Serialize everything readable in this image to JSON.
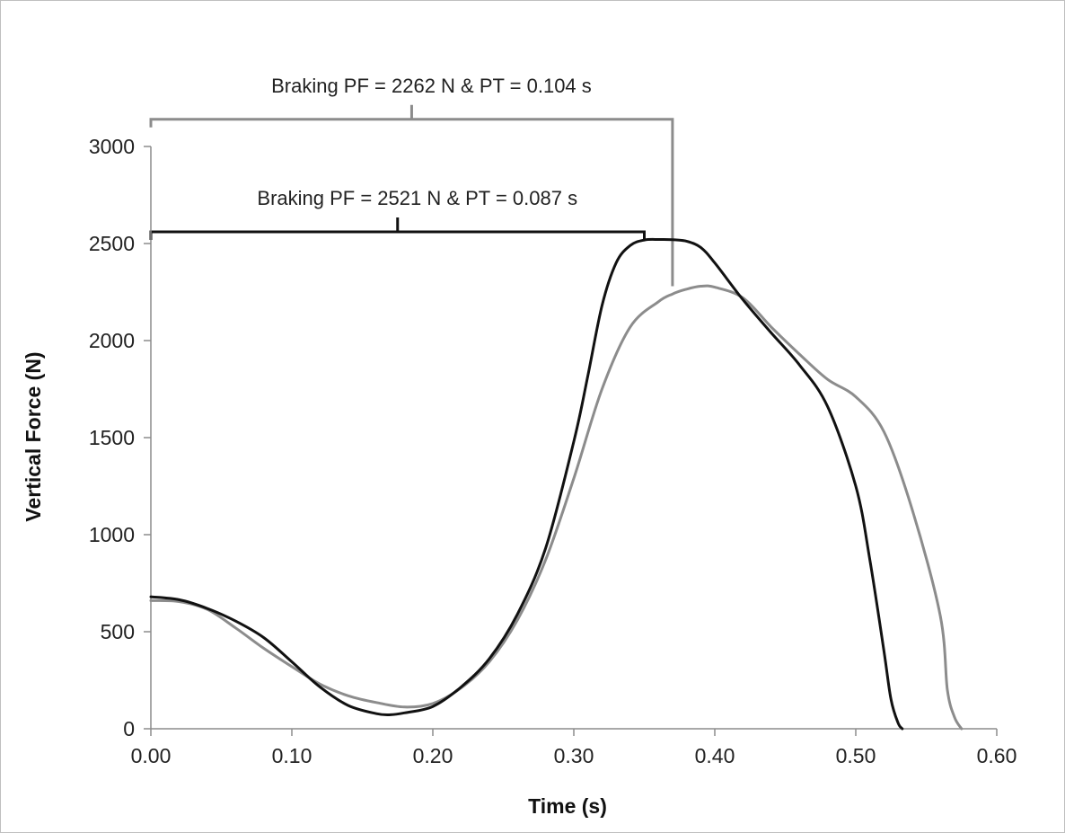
{
  "chart_data": {
    "type": "line",
    "title": "",
    "xlabel": "Time (s)",
    "ylabel": "Vertical Force (N)",
    "xlim": [
      0,
      0.6
    ],
    "ylim": [
      0,
      3000
    ],
    "x_ticks": [
      "0.00",
      "0.10",
      "0.20",
      "0.30",
      "0.40",
      "0.50",
      "0.60"
    ],
    "y_ticks": [
      "0",
      "500",
      "1000",
      "1500",
      "2000",
      "2500",
      "3000"
    ],
    "grid": false,
    "legend": "none",
    "series": [
      {
        "color": "#111111",
        "points": [
          [
            0.0,
            680
          ],
          [
            0.02,
            665
          ],
          [
            0.04,
            620
          ],
          [
            0.06,
            555
          ],
          [
            0.08,
            470
          ],
          [
            0.1,
            345
          ],
          [
            0.12,
            215
          ],
          [
            0.14,
            120
          ],
          [
            0.16,
            78
          ],
          [
            0.17,
            72
          ],
          [
            0.18,
            82
          ],
          [
            0.2,
            115
          ],
          [
            0.22,
            215
          ],
          [
            0.24,
            360
          ],
          [
            0.26,
            590
          ],
          [
            0.28,
            930
          ],
          [
            0.3,
            1480
          ],
          [
            0.31,
            1820
          ],
          [
            0.32,
            2180
          ],
          [
            0.33,
            2400
          ],
          [
            0.34,
            2490
          ],
          [
            0.35,
            2518
          ],
          [
            0.36,
            2521
          ],
          [
            0.37,
            2520
          ],
          [
            0.38,
            2512
          ],
          [
            0.39,
            2480
          ],
          [
            0.4,
            2400
          ],
          [
            0.42,
            2210
          ],
          [
            0.44,
            2040
          ],
          [
            0.46,
            1875
          ],
          [
            0.48,
            1660
          ],
          [
            0.5,
            1250
          ],
          [
            0.51,
            870
          ],
          [
            0.52,
            400
          ],
          [
            0.525,
            150
          ],
          [
            0.53,
            30
          ],
          [
            0.533,
            0
          ]
        ]
      },
      {
        "color": "#8c8c8c",
        "points": [
          [
            0.0,
            660
          ],
          [
            0.02,
            655
          ],
          [
            0.04,
            615
          ],
          [
            0.06,
            520
          ],
          [
            0.08,
            415
          ],
          [
            0.1,
            320
          ],
          [
            0.12,
            230
          ],
          [
            0.14,
            170
          ],
          [
            0.16,
            135
          ],
          [
            0.18,
            112
          ],
          [
            0.2,
            130
          ],
          [
            0.22,
            210
          ],
          [
            0.24,
            345
          ],
          [
            0.26,
            560
          ],
          [
            0.28,
            870
          ],
          [
            0.3,
            1290
          ],
          [
            0.32,
            1750
          ],
          [
            0.34,
            2070
          ],
          [
            0.36,
            2200
          ],
          [
            0.37,
            2240
          ],
          [
            0.38,
            2265
          ],
          [
            0.39,
            2280
          ],
          [
            0.4,
            2275
          ],
          [
            0.42,
            2220
          ],
          [
            0.44,
            2070
          ],
          [
            0.46,
            1930
          ],
          [
            0.48,
            1800
          ],
          [
            0.5,
            1710
          ],
          [
            0.52,
            1530
          ],
          [
            0.54,
            1130
          ],
          [
            0.56,
            580
          ],
          [
            0.565,
            200
          ],
          [
            0.57,
            60
          ],
          [
            0.575,
            0
          ]
        ]
      }
    ],
    "annotations": [
      {
        "text": "Braking PF = 2262 N & PT = 0.104 s",
        "color": "#8c8c8c",
        "bracket": {
          "x_start": 0.0,
          "x_end": 0.37,
          "y": 3140,
          "drop_to_y": 2280
        }
      },
      {
        "text": "Braking PF = 2521 N & PT = 0.087 s",
        "color": "#111111",
        "bracket": {
          "x_start": 0.0,
          "x_end": 0.35,
          "y": 2560
        }
      }
    ]
  }
}
